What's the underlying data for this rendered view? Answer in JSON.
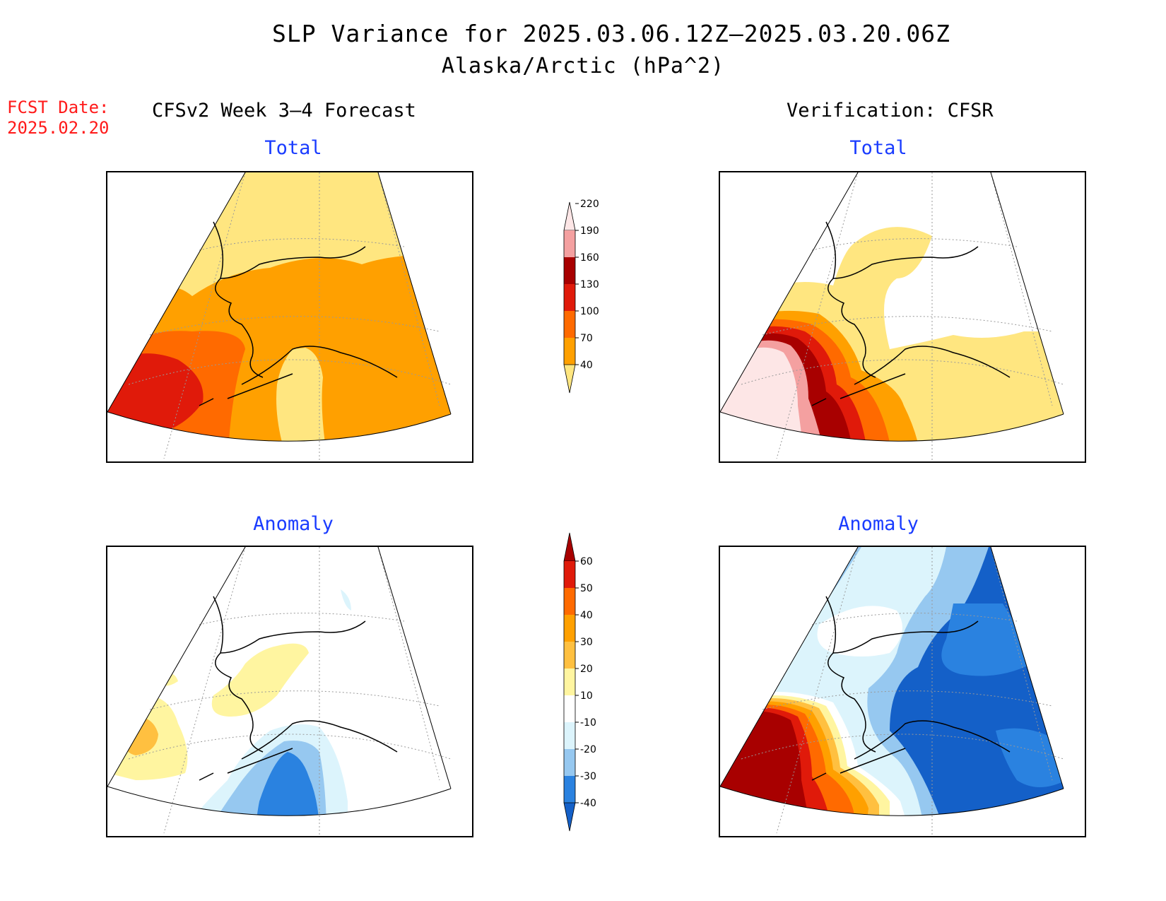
{
  "header": {
    "title": "SLP Variance for 2025.03.06.12Z–2025.03.20.06Z",
    "subtitle": "Alaska/Arctic (hPa^2)",
    "fcst_date_label": "FCST Date:",
    "fcst_date_value": "2025.02.20",
    "left_column_title": "CFSv2 Week 3–4 Forecast",
    "right_column_title": "Verification: CFSR"
  },
  "panels": {
    "forecast_total": "Total",
    "verification_total": "Total",
    "forecast_anomaly": "Anomaly",
    "verification_anomaly": "Anomaly"
  },
  "colorbars": {
    "total": {
      "ticks": [
        "40",
        "70",
        "100",
        "130",
        "160",
        "190",
        "220"
      ],
      "colors": [
        "#ffe680",
        "#ffa000",
        "#ff6a00",
        "#e01a0a",
        "#a80000",
        "#f4a0a0",
        "#fde6e6"
      ]
    },
    "anomaly": {
      "ticks": [
        "-40",
        "-30",
        "-20",
        "-10",
        "10",
        "20",
        "30",
        "40",
        "50",
        "60"
      ],
      "colors": [
        "#1460c8",
        "#2a82e0",
        "#96c8f0",
        "#dcf4fc",
        "#ffffff",
        "#fff5a0",
        "#ffc040",
        "#ffa000",
        "#ff6a00",
        "#e01a0a",
        "#a80000"
      ]
    }
  },
  "colors": {
    "title_text": "#000000",
    "fcst_text": "#ff1a1a",
    "panel_title_text": "#1a3cff"
  }
}
